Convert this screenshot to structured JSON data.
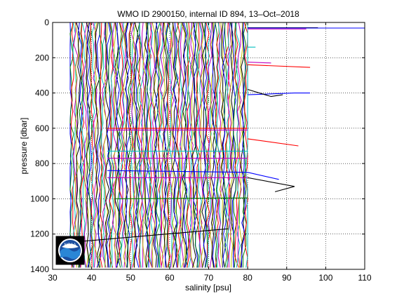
{
  "chart_data": {
    "type": "line",
    "title": "WMO ID 2900150, internal ID 894, 13–Oct–2018",
    "xlabel": "salinity [psu]",
    "ylabel": "pressure [dbar]",
    "xlim": [
      30,
      110
    ],
    "ylim": [
      0,
      1400
    ],
    "y_reversed": true,
    "grid": true,
    "xticks": [
      30,
      40,
      50,
      60,
      70,
      80,
      90,
      100,
      110
    ],
    "yticks": [
      0,
      200,
      400,
      600,
      800,
      1000,
      1200,
      1400
    ],
    "colors": [
      "#0000ff",
      "#008000",
      "#ff0000",
      "#00bfbf",
      "#bf00bf",
      "#bfbf00",
      "#000000"
    ],
    "profile_band": {
      "salinity_min": 34.5,
      "salinity_max": 80.0,
      "pressure_max": 1390
    },
    "series": [
      {
        "color": "#000000",
        "x": [
          80,
          93,
          98
        ],
        "y": [
          30,
          30,
          30
        ]
      },
      {
        "color": "#0000ff",
        "x": [
          80,
          100,
          110
        ],
        "y": [
          32,
          32,
          32
        ]
      },
      {
        "color": "#bf00bf",
        "x": [
          80,
          95
        ],
        "y": [
          37,
          37
        ]
      },
      {
        "color": "#00bfbf",
        "x": [
          80,
          82
        ],
        "y": [
          140,
          140
        ]
      },
      {
        "color": "#ff0000",
        "x": [
          80,
          96
        ],
        "y": [
          240,
          255
        ]
      },
      {
        "color": "#bf00bf",
        "x": [
          80,
          86
        ],
        "y": [
          225,
          230
        ]
      },
      {
        "color": "#0000ff",
        "x": [
          80,
          92,
          96
        ],
        "y": [
          410,
          400,
          400
        ]
      },
      {
        "color": "#000000",
        "x": [
          80,
          86,
          89
        ],
        "y": [
          380,
          420,
          410
        ]
      },
      {
        "color": "#ff0000",
        "x": [
          44,
          80
        ],
        "y": [
          600,
          600
        ]
      },
      {
        "color": "#bf00bf",
        "x": [
          44,
          80
        ],
        "y": [
          610,
          610
        ]
      },
      {
        "color": "#ff0000",
        "x": [
          80,
          93
        ],
        "y": [
          660,
          700
        ]
      },
      {
        "color": "#00bfbf",
        "x": [
          44,
          80
        ],
        "y": [
          730,
          730
        ]
      },
      {
        "color": "#bf00bf",
        "x": [
          44,
          80
        ],
        "y": [
          770,
          770
        ]
      },
      {
        "color": "#0000ff",
        "x": [
          44,
          80,
          88
        ],
        "y": [
          840,
          850,
          890
        ]
      },
      {
        "color": "#bf00bf",
        "x": [
          44,
          80
        ],
        "y": [
          880,
          880
        ]
      },
      {
        "color": "#000000",
        "x": [
          80,
          92,
          87
        ],
        "y": [
          880,
          930,
          960
        ]
      },
      {
        "color": "#008000",
        "x": [
          46,
          80
        ],
        "y": [
          1000,
          995
        ]
      },
      {
        "color": "#000000",
        "x": [
          38,
          75
        ],
        "y": [
          1240,
          1170
        ]
      }
    ]
  },
  "logo": {
    "text": "NOAA"
  }
}
